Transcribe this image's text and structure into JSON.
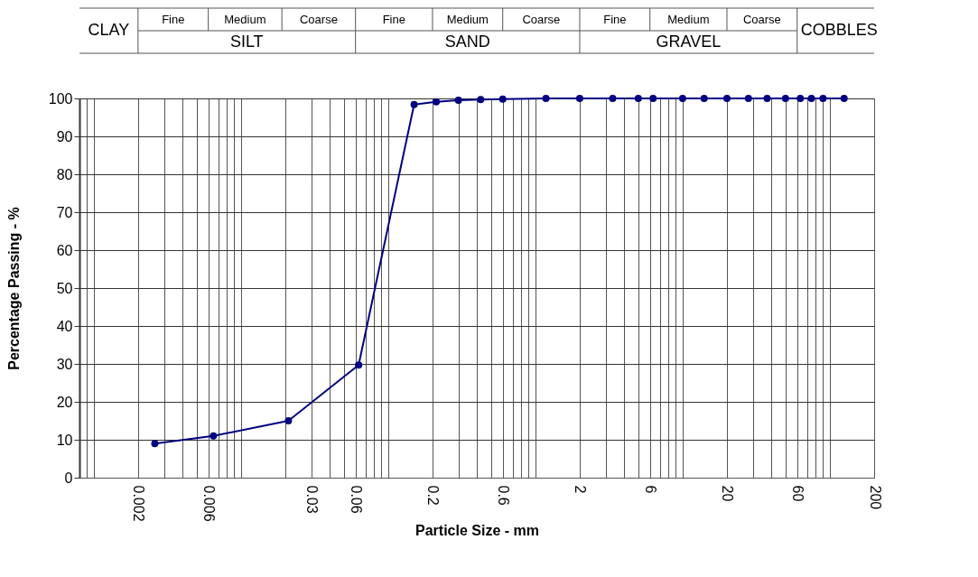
{
  "chart_data": {
    "type": "line",
    "xlabel": "Particle Size  -  mm",
    "ylabel": "Percentage Passing  -  %",
    "annotations": [
      "CLAY",
      "Fine",
      "Medium",
      "Coarse",
      "Fine",
      "Medium",
      "Coarse",
      "Fine",
      "Medium",
      "Coarse",
      "COBBLES",
      "SILT",
      "SAND",
      "GRAVEL"
    ],
    "log": "x",
    "grid": true,
    "marker": "circle",
    "line_style": "solid",
    "x": [
      0.0026,
      0.0065,
      0.021,
      0.063,
      0.15,
      0.212,
      0.3,
      0.425,
      0.6,
      1.18,
      2,
      3.35,
      5,
      6.3,
      10,
      14,
      20,
      28,
      37.5,
      50,
      63,
      75,
      90,
      125
    ],
    "series": [
      {
        "color": "#000080",
        "values": [
          9,
          11,
          15,
          29.7,
          98.4,
          99.1,
          99.5,
          99.7,
          99.8,
          100,
          100,
          100,
          100,
          100,
          100,
          100,
          100,
          100,
          100,
          100,
          100,
          100,
          100,
          100
        ]
      }
    ],
    "xlim": [
      0.0008,
      200
    ],
    "ylim": [
      0,
      100
    ],
    "yticks": [
      0,
      10,
      20,
      30,
      40,
      50,
      60,
      70,
      80,
      90,
      100
    ],
    "xticks": [
      {
        "value": 0.0008,
        "label": null
      },
      {
        "value": 0.0009,
        "label": null
      },
      {
        "value": 0.001,
        "label": null
      },
      0.002,
      {
        "value": 0.003,
        "label": null
      },
      {
        "value": 0.004,
        "label": null
      },
      {
        "value": 0.005,
        "label": null
      },
      0.006,
      {
        "value": 0.007,
        "label": null
      },
      {
        "value": 0.008,
        "label": null
      },
      {
        "value": 0.009,
        "label": null
      },
      {
        "value": 0.01,
        "label": null
      },
      {
        "value": 0.02,
        "label": null
      },
      0.03,
      {
        "value": 0.04,
        "label": null
      },
      {
        "value": 0.05,
        "label": null
      },
      0.06,
      {
        "value": 0.07,
        "label": null
      },
      {
        "value": 0.08,
        "label": null
      },
      {
        "value": 0.09,
        "label": null
      },
      {
        "value": 0.1,
        "label": null
      },
      0.2,
      {
        "value": 0.3,
        "label": null
      },
      {
        "value": 0.4,
        "label": null
      },
      {
        "value": 0.5,
        "label": null
      },
      0.6,
      {
        "value": 0.7,
        "label": null
      },
      {
        "value": 0.8,
        "label": null
      },
      {
        "value": 0.9,
        "label": null
      },
      {
        "value": 1,
        "label": null
      },
      2,
      {
        "value": 3,
        "label": null
      },
      {
        "value": 4,
        "label": null
      },
      {
        "value": 5,
        "label": null
      },
      6,
      {
        "value": 7,
        "label": null
      },
      {
        "value": 8,
        "label": null
      },
      {
        "value": 9,
        "label": null
      },
      {
        "value": 10,
        "label": null
      },
      20,
      {
        "value": 30,
        "label": null
      },
      {
        "value": 40,
        "label": null
      },
      {
        "value": 50,
        "label": null
      },
      60,
      {
        "value": 70,
        "label": null
      },
      {
        "value": 80,
        "label": null
      },
      {
        "value": 90,
        "label": null
      },
      {
        "value": 100,
        "label": null
      },
      200
    ]
  }
}
